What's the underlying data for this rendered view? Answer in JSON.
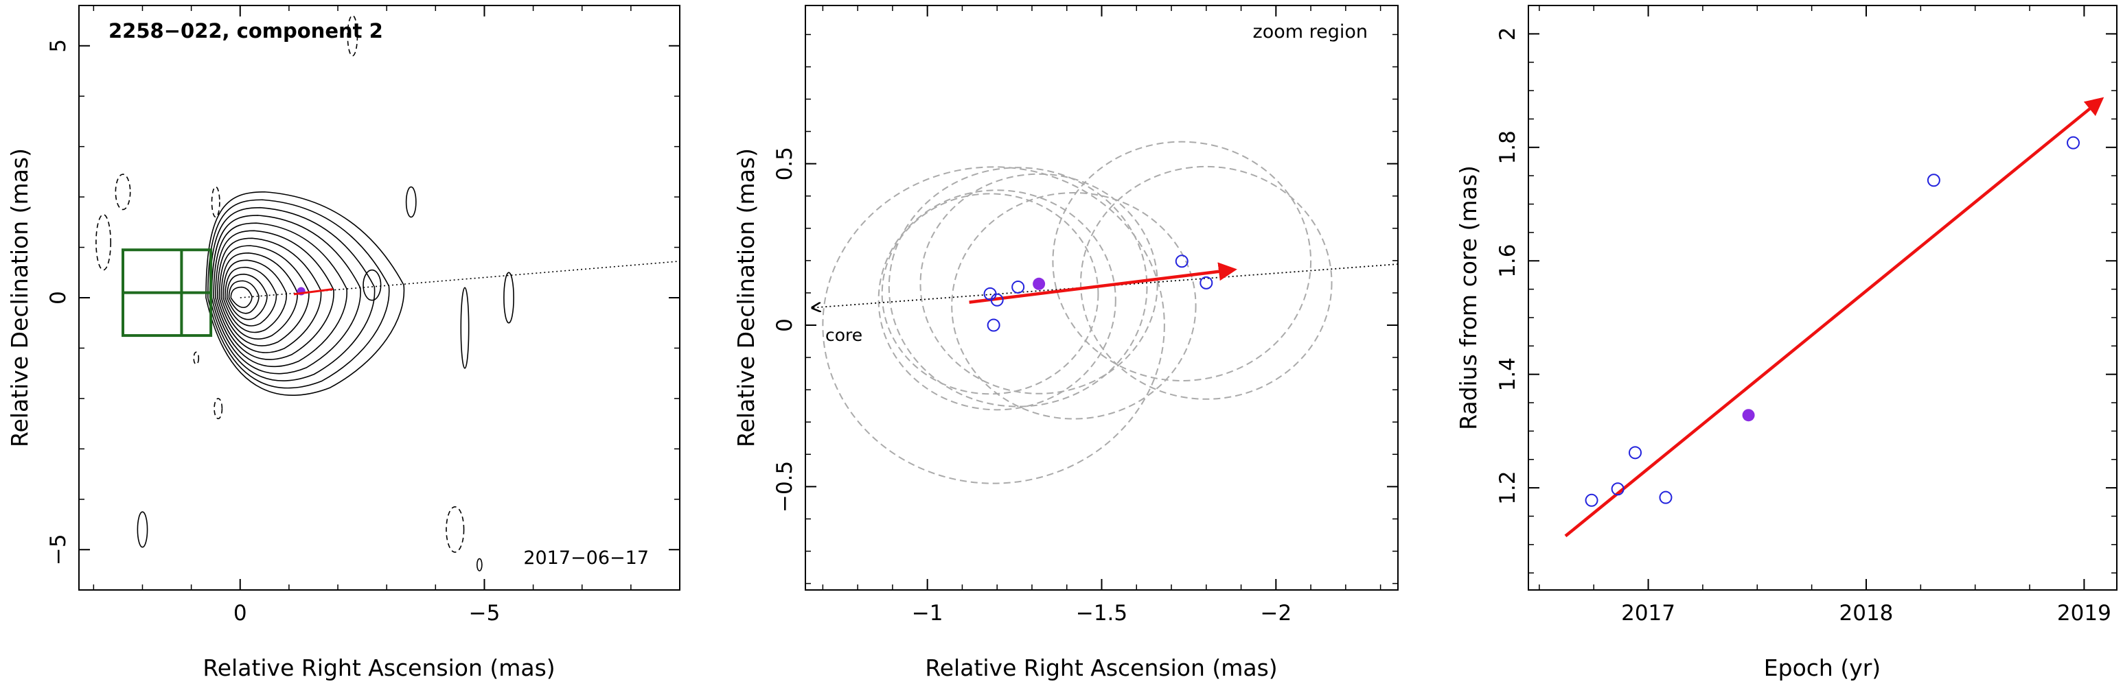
{
  "chart_data": [
    {
      "type": "scatter",
      "title": "2258−022, component 2",
      "annotation": "2017−06−17",
      "xlabel": "Relative Right Ascension (mas)",
      "ylabel": "Relative Declination (mas)",
      "xlim": [
        3.3,
        -9.0
      ],
      "ylim": [
        -5.8,
        5.8
      ],
      "xticks": [
        {
          "v": 0,
          "label": "0"
        },
        {
          "v": -5,
          "label": "−5"
        }
      ],
      "yticks": [
        {
          "v": -5,
          "label": "−5"
        },
        {
          "v": 0,
          "label": "0"
        },
        {
          "v": 5,
          "label": "5"
        }
      ],
      "contour_peak": [
        0.0,
        0.0
      ],
      "zoom_box": {
        "x": [
          0.6,
          2.4
        ],
        "y": [
          -0.75,
          0.95
        ],
        "color": "#1f6b1f"
      },
      "jet_axis_angle_deg": 4.6,
      "grid": false
    },
    {
      "type": "scatter",
      "title": "",
      "annotation": "zoom region",
      "core_label": "core",
      "xlabel": "Relative Right Ascension (mas)",
      "ylabel": "Relative Declination (mas)",
      "xlim": [
        -0.65,
        -2.35
      ],
      "ylim": [
        -0.82,
        0.99
      ],
      "xticks": [
        {
          "v": -1,
          "label": "−1"
        },
        {
          "v": -1.5,
          "label": "−1.5"
        },
        {
          "v": -2,
          "label": "−2"
        }
      ],
      "yticks": [
        {
          "v": -0.5,
          "label": "−0.5"
        },
        {
          "v": 0,
          "label": "0"
        },
        {
          "v": 0.5,
          "label": "0.5"
        }
      ],
      "series": [
        {
          "marker": "open-circle",
          "color": "#2222dd",
          "points": [
            [
              -1.18,
              0.097
            ],
            [
              -1.2,
              0.078
            ],
            [
              -1.19,
              0.0
            ],
            [
              -1.26,
              0.118
            ],
            [
              -1.73,
              0.198
            ],
            [
              -1.8,
              0.131
            ]
          ]
        },
        {
          "marker": "filled-circle",
          "color": "#8a2be2",
          "points": [
            [
              -1.32,
              0.128
            ]
          ]
        }
      ],
      "fit_arrow": {
        "from": [
          -1.12,
          0.071
        ],
        "to": [
          -1.88,
          0.172
        ],
        "color": "#ee1111"
      },
      "circles": [
        {
          "x": -1.18,
          "y": 0.097,
          "r": 0.31
        },
        {
          "x": -1.2,
          "y": 0.078,
          "r": 0.34
        },
        {
          "x": -1.19,
          "y": 0.0,
          "r": 0.49
        },
        {
          "x": -1.26,
          "y": 0.118,
          "r": 0.37
        },
        {
          "x": -1.73,
          "y": 0.198,
          "r": 0.37
        },
        {
          "x": -1.8,
          "y": 0.131,
          "r": 0.36
        },
        {
          "x": -1.32,
          "y": 0.128,
          "r": 0.34
        },
        {
          "x": -1.42,
          "y": 0.06,
          "r": 0.35
        }
      ],
      "jet_axis_angle_deg": 4.6,
      "grid": false
    },
    {
      "type": "scatter",
      "title": "",
      "xlabel": "Epoch (yr)",
      "ylabel": "Radius from core (mas)",
      "xlim": [
        2016.45,
        2019.15
      ],
      "ylim": [
        1.02,
        2.05
      ],
      "xticks": [
        {
          "v": 2017,
          "label": "2017"
        },
        {
          "v": 2018,
          "label": "2018"
        },
        {
          "v": 2019,
          "label": "2019"
        }
      ],
      "yticks": [
        {
          "v": 1.2,
          "label": "1.2"
        },
        {
          "v": 1.4,
          "label": "1.4"
        },
        {
          "v": 1.6,
          "label": "1.6"
        },
        {
          "v": 1.8,
          "label": "1.8"
        },
        {
          "v": 2.0,
          "label": "2"
        }
      ],
      "series": [
        {
          "marker": "open-circle",
          "color": "#2222dd",
          "points": [
            [
              2016.74,
              1.178
            ],
            [
              2016.86,
              1.198
            ],
            [
              2016.94,
              1.262
            ],
            [
              2017.08,
              1.183
            ],
            [
              2018.31,
              1.742
            ],
            [
              2018.95,
              1.808
            ]
          ]
        },
        {
          "marker": "filled-circle",
          "color": "#8a2be2",
          "points": [
            [
              2017.46,
              1.328
            ]
          ]
        }
      ],
      "fit_arrow": {
        "from": [
          2016.62,
          1.115
        ],
        "to": [
          2019.08,
          1.885
        ],
        "color": "#ee1111"
      },
      "grid": false
    }
  ]
}
